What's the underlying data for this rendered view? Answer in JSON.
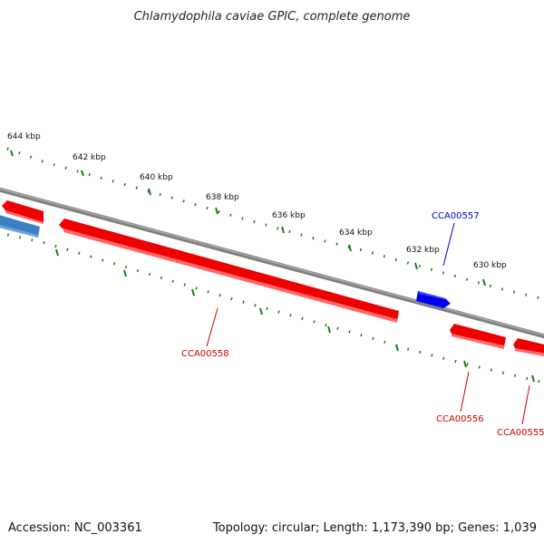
{
  "title": "Chlamydophila caviae GPIC, complete genome",
  "footer": {
    "accession": "Accession: NC_003361",
    "summary": "Topology: circular; Length: 1,173,390 bp; Genes: 1,039"
  },
  "colors": {
    "backbone": "#7f7f7f",
    "gene_forward": "#ff0000",
    "gene_reverse_blue": "#0000ee",
    "gene_other_blue": "#4a86c0",
    "tick": "#1f7a1f",
    "label_red": "#cc0000",
    "label_blue": "#0000cc"
  },
  "ruler": {
    "unit_labels": [
      "644 kbp",
      "642 kbp",
      "640 kbp",
      "638 kbp",
      "636 kbp",
      "634 kbp",
      "632 kbp",
      "630 kbp"
    ]
  },
  "genes": [
    {
      "name": "CCA00557",
      "strand": "forward",
      "color": "blue"
    },
    {
      "name": "CCA00558",
      "strand": "reverse",
      "color": "red"
    },
    {
      "name": "CCA00556",
      "strand": "reverse",
      "color": "red"
    },
    {
      "name": "CCA00555",
      "strand": "reverse",
      "color": "red"
    }
  ]
}
